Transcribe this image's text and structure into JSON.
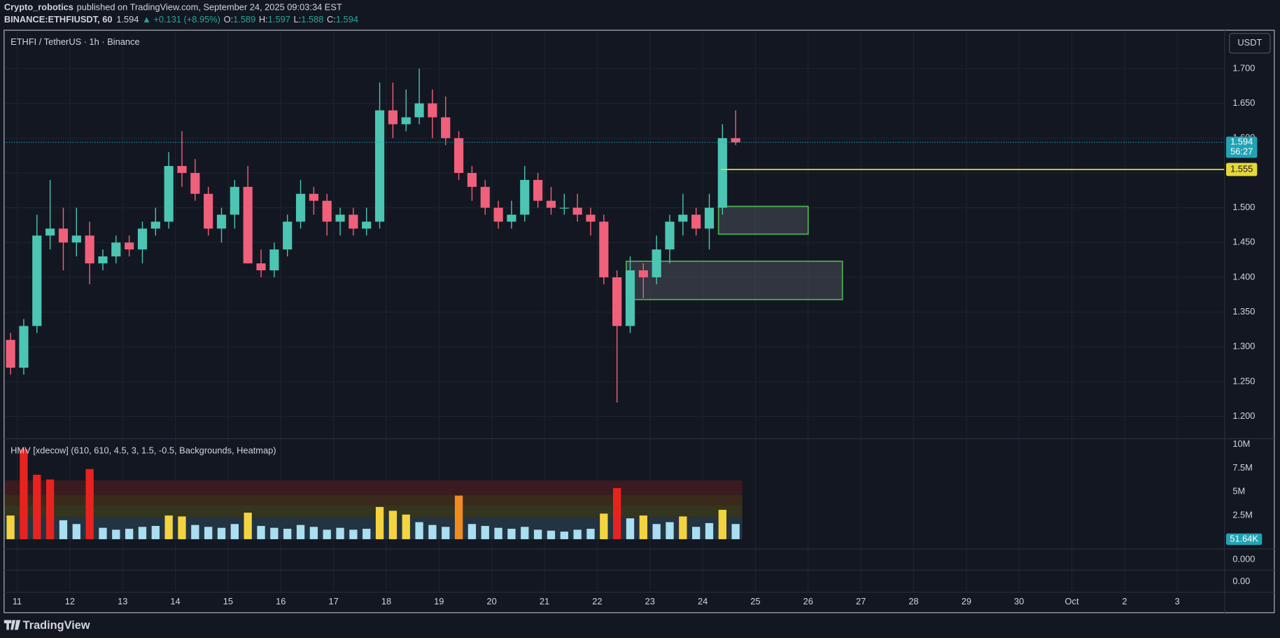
{
  "header": {
    "author": "Crypto_robotics",
    "published": "published on TradingView.com, September 24, 2025 09:03:34 EST",
    "symbol": "BINANCE:ETHFIUSDT, 60",
    "last": "1.594",
    "change": "▲ +0.131 (+8.95%)",
    "o_label": "O:",
    "o": "1.589",
    "h_label": "H:",
    "h": "1.597",
    "l_label": "L:",
    "l": "1.588",
    "c_label": "C:",
    "c": "1.594"
  },
  "currency_button": "USDT",
  "footer": "TradingView",
  "lower_pane": {
    "labels": [
      "0.000",
      "0.00"
    ]
  },
  "chart_data": [
    {
      "type": "candlestick",
      "title": "ETHFI / TetherUS · 1h · Binance",
      "x": [
        10.75,
        11,
        11.25,
        11.5,
        11.75,
        12,
        12.25,
        12.5,
        12.75,
        13,
        13.25,
        13.5,
        13.75,
        14,
        14.25,
        14.5,
        14.75,
        15,
        15.25,
        15.5,
        15.75,
        16,
        16.25,
        16.5,
        16.75,
        17,
        17.25,
        17.5,
        17.75,
        18,
        18.25,
        18.5,
        18.75,
        19,
        19.25,
        19.5,
        19.75,
        20,
        20.25,
        20.5,
        20.75,
        21,
        21.25,
        21.5,
        21.75,
        22,
        22.25,
        22.5,
        22.75,
        23,
        23.25,
        23.5,
        23.75,
        24,
        24.25,
        24.5
      ],
      "open": [
        1.31,
        1.27,
        1.33,
        1.46,
        1.47,
        1.45,
        1.46,
        1.42,
        1.43,
        1.45,
        1.44,
        1.47,
        1.48,
        1.56,
        1.55,
        1.52,
        1.47,
        1.49,
        1.53,
        1.42,
        1.41,
        1.44,
        1.48,
        1.52,
        1.51,
        1.48,
        1.49,
        1.47,
        1.48,
        1.64,
        1.62,
        1.63,
        1.65,
        1.63,
        1.6,
        1.55,
        1.53,
        1.5,
        1.48,
        1.49,
        1.54,
        1.51,
        1.5,
        1.5,
        1.49,
        1.48,
        1.4,
        1.33,
        1.41,
        1.4,
        1.44,
        1.48,
        1.49,
        1.47,
        1.5,
        1.6
      ],
      "high": [
        1.32,
        1.34,
        1.49,
        1.54,
        1.5,
        1.5,
        1.48,
        1.44,
        1.46,
        1.46,
        1.48,
        1.5,
        1.58,
        1.61,
        1.57,
        1.53,
        1.5,
        1.54,
        1.56,
        1.44,
        1.45,
        1.49,
        1.54,
        1.53,
        1.52,
        1.5,
        1.5,
        1.5,
        1.68,
        1.68,
        1.67,
        1.7,
        1.67,
        1.66,
        1.61,
        1.56,
        1.54,
        1.51,
        1.51,
        1.56,
        1.55,
        1.53,
        1.52,
        1.52,
        1.5,
        1.49,
        1.41,
        1.43,
        1.42,
        1.46,
        1.49,
        1.52,
        1.5,
        1.52,
        1.62,
        1.64
      ],
      "low": [
        1.26,
        1.26,
        1.32,
        1.44,
        1.41,
        1.43,
        1.39,
        1.41,
        1.42,
        1.43,
        1.42,
        1.46,
        1.47,
        1.53,
        1.51,
        1.46,
        1.45,
        1.47,
        1.42,
        1.4,
        1.4,
        1.43,
        1.47,
        1.49,
        1.46,
        1.46,
        1.46,
        1.46,
        1.47,
        1.6,
        1.61,
        1.62,
        1.6,
        1.59,
        1.54,
        1.51,
        1.49,
        1.47,
        1.47,
        1.48,
        1.5,
        1.49,
        1.49,
        1.48,
        1.46,
        1.39,
        1.22,
        1.32,
        1.37,
        1.39,
        1.42,
        1.46,
        1.46,
        1.44,
        1.49,
        1.59
      ],
      "close": [
        1.27,
        1.33,
        1.46,
        1.47,
        1.45,
        1.46,
        1.42,
        1.43,
        1.45,
        1.44,
        1.47,
        1.48,
        1.56,
        1.55,
        1.52,
        1.47,
        1.49,
        1.53,
        1.42,
        1.41,
        1.44,
        1.48,
        1.52,
        1.51,
        1.48,
        1.49,
        1.47,
        1.48,
        1.64,
        1.62,
        1.63,
        1.65,
        1.63,
        1.6,
        1.55,
        1.53,
        1.5,
        1.48,
        1.49,
        1.54,
        1.51,
        1.5,
        1.5,
        1.49,
        1.48,
        1.4,
        1.33,
        1.41,
        1.4,
        1.44,
        1.48,
        1.49,
        1.47,
        1.5,
        1.6,
        1.594
      ],
      "up_color": "#4cc5b3",
      "down_color": "#f0607a",
      "xlim": [
        10.752,
        33.895
      ],
      "xticks": [
        11,
        12,
        13,
        14,
        15,
        16,
        17,
        18,
        19,
        20,
        21,
        22,
        23,
        24,
        25,
        26,
        27,
        28,
        29,
        30,
        {
          "value": 31,
          "label": "Oct"
        },
        {
          "value": 32,
          "label": "2"
        },
        {
          "value": 33,
          "label": "3"
        }
      ],
      "ylim": [
        1.168,
        1.754
      ],
      "yticks": [
        {
          "value": 1.2,
          "label": "1.200"
        },
        {
          "value": 1.25,
          "label": "1.250"
        },
        {
          "value": 1.3,
          "label": "1.300"
        },
        {
          "value": 1.35,
          "label": "1.350"
        },
        {
          "value": 1.4,
          "label": "1.400"
        },
        {
          "value": 1.45,
          "label": "1.450"
        },
        {
          "value": 1.5,
          "label": "1.500"
        },
        {
          "value": 1.55,
          "label": "1.550"
        },
        {
          "value": 1.6,
          "label": "1.600"
        },
        {
          "value": 1.65,
          "label": "1.650"
        },
        {
          "value": 1.7,
          "label": "1.700"
        }
      ],
      "grid": true,
      "price_line": {
        "value": 1.594,
        "label": "1.594",
        "countdown": "56:27",
        "color": "#22a3b5"
      },
      "level": {
        "value": 1.555,
        "label": "1.555",
        "x0": 24.35,
        "color": "#e5d737"
      },
      "zones": [
        {
          "x0": 24.3,
          "x1": 26.0,
          "y0": 1.462,
          "y1": 1.502
        },
        {
          "x0": 22.55,
          "x1": 26.65,
          "y0": 1.368,
          "y1": 1.423
        }
      ],
      "zone_color": "#4caf50"
    },
    {
      "type": "volume",
      "title": "HMV [xdecow] (610, 610, 4.5, 3, 1.5, -0.5, Backgrounds, Heatmap)",
      "x": [
        10.75,
        11,
        11.25,
        11.5,
        11.75,
        12,
        12.25,
        12.5,
        12.75,
        13,
        13.25,
        13.5,
        13.75,
        14,
        14.25,
        14.5,
        14.75,
        15,
        15.25,
        15.5,
        15.75,
        16,
        16.25,
        16.5,
        16.75,
        17,
        17.25,
        17.5,
        17.75,
        18,
        18.25,
        18.5,
        18.75,
        19,
        19.25,
        19.5,
        19.75,
        20,
        20.25,
        20.5,
        20.75,
        21,
        21.25,
        21.5,
        21.75,
        22,
        22.25,
        22.5,
        22.75,
        23,
        23.25,
        23.5,
        23.75,
        24,
        24.25,
        24.5
      ],
      "values": [
        2.5,
        9.5,
        6.8,
        6.3,
        2.0,
        1.6,
        7.4,
        1.2,
        1.0,
        1.1,
        1.3,
        1.4,
        2.5,
        2.4,
        1.5,
        1.3,
        1.2,
        1.6,
        2.8,
        1.4,
        1.2,
        1.1,
        1.5,
        1.3,
        1.0,
        1.2,
        1.0,
        1.1,
        3.4,
        3.0,
        2.6,
        1.8,
        1.5,
        1.3,
        4.6,
        1.6,
        1.4,
        1.2,
        1.1,
        1.3,
        1.0,
        0.9,
        0.8,
        1.0,
        1.1,
        2.7,
        5.4,
        2.2,
        2.5,
        1.6,
        1.8,
        2.4,
        1.3,
        1.7,
        3.1,
        1.6
      ],
      "ylim": [
        -1.03,
        10.52
      ],
      "yticks": [
        {
          "value": 2.5,
          "label": "2.5M"
        },
        {
          "value": 5,
          "label": "5M"
        },
        {
          "value": 7.5,
          "label": "7.5M"
        },
        {
          "value": 10,
          "label": "10M"
        }
      ],
      "bands": [
        {
          "from": 0,
          "to": 2.3,
          "color": "#243341",
          "bar_color": "#a9dff0"
        },
        {
          "from": 2.3,
          "to": 3.6,
          "color": "#34351f",
          "bar_color": "#f4d43e"
        },
        {
          "from": 3.6,
          "to": 4.7,
          "color": "#3a2a1b",
          "bar_color": "#f08c1f"
        },
        {
          "from": 4.7,
          "to": 6.2,
          "color": "#3b1a20",
          "bar_color": "#e8231f"
        }
      ],
      "last_label": "51.64K",
      "last_color": "#22a3b5"
    }
  ]
}
